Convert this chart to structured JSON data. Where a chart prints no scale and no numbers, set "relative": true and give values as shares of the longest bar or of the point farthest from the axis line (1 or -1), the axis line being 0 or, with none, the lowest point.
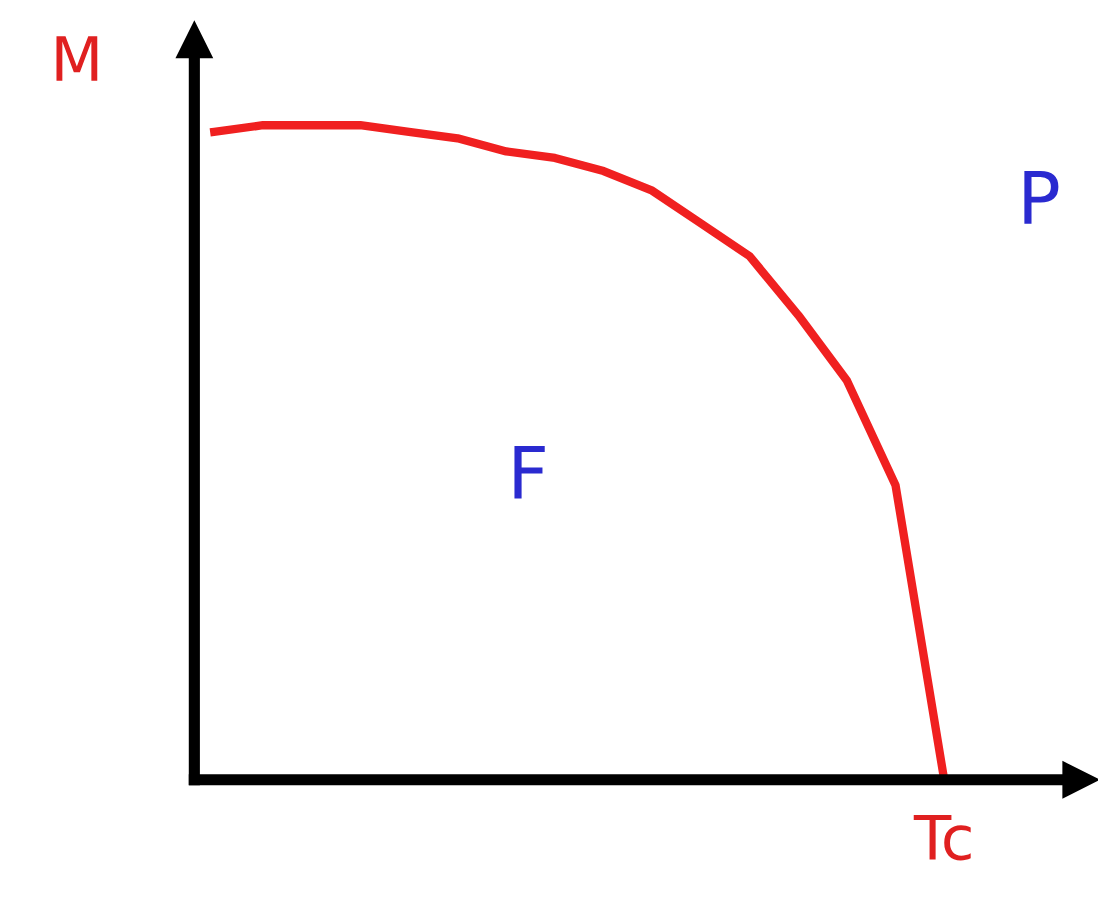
{
  "chart_data": {
    "type": "line",
    "relative": true,
    "ylabel": "M",
    "categories": [
      null,
      null,
      null,
      null,
      null,
      null,
      null,
      null,
      null,
      null,
      null,
      null,
      null,
      null,
      null,
      null
    ],
    "series": [
      {
        "color": "#f02020",
        "values": [
          0.99,
          1.0,
          1.0,
          1.0,
          0.99,
          0.98,
          0.96,
          0.95,
          0.93,
          0.9,
          0.85,
          0.8,
          0.71,
          0.61,
          0.45,
          0.0
        ]
      }
    ],
    "annotations": [
      "F",
      "P",
      "Tc"
    ],
    "legend": false,
    "marker": "none",
    "line_style": "solid"
  }
}
